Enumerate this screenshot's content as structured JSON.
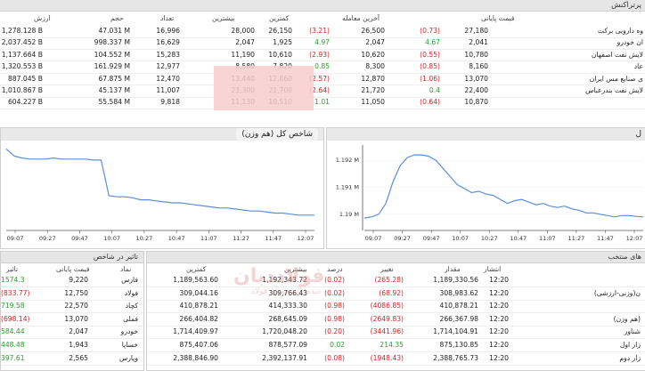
{
  "top_table": {
    "title": "پرتراکنش",
    "headers": {
      "value": "ارزش",
      "volume": "حجم",
      "count": "تعداد",
      "high": "بیشترین",
      "low": "کمترین",
      "last_change": "",
      "last": "آخرین معامله",
      "close_change": "",
      "close": "قیمت پایانی",
      "name": ""
    },
    "rows": [
      {
        "value": "1,278.128 B",
        "volume": "47.031 M",
        "count": "16,996",
        "high": "28,000",
        "low": "26,150",
        "last_change": "(3.21)",
        "last": "26,500",
        "close_change": "(0.73)",
        "close": "27,180",
        "name": "وه دارویی برکت"
      },
      {
        "value": "2,037.452 B",
        "volume": "998.337 M",
        "count": "16,629",
        "high": "2,047",
        "low": "1,925",
        "last_change": "4.97",
        "last": "2,047",
        "close_change": "4.67",
        "close": "2,041",
        "name": "ان خودرو"
      },
      {
        "value": "1,137.664 B",
        "volume": "104.552 M",
        "count": "15,283",
        "high": "11,190",
        "low": "10,610",
        "last_change": "(2.93)",
        "last": "10,620",
        "close_change": "(0.55)",
        "close": "10,780",
        "name": "لایش نفت اصفهان"
      },
      {
        "value": "1,320.553 B",
        "volume": "161.929 M",
        "count": "12,977",
        "high": "8,580",
        "low": "7,820",
        "last_change": "0.85",
        "last": "8,300",
        "close_change": "(0.85)",
        "close": "8,160",
        "name": "عاد"
      },
      {
        "value": "887.045 B",
        "volume": "67.875 M",
        "count": "12,470",
        "high": "13,440",
        "low": "12,860",
        "last_change": "(2.57)",
        "last": "12,870",
        "close_change": "(1.06)",
        "close": "13,070",
        "name": "ی صنایع مس ایران"
      },
      {
        "value": "1,010.867 B",
        "volume": "45.137 M",
        "count": "11,007",
        "high": "23,300",
        "low": "21,700",
        "last_change": "(2.64)",
        "last": "21,720",
        "close_change": "0.4",
        "close": "22,400",
        "name": "لایش نفت بندرعباس"
      },
      {
        "value": "604.227 B",
        "volume": "55.584 M",
        "count": "9,818",
        "high": "11,130",
        "low": "10,510",
        "last_change": "1.01",
        "last": "11,050",
        "close_change": "(0.64)",
        "close": "10,870",
        "name": ""
      }
    ]
  },
  "chart_left": {
    "title": "شاخص کل (هم وزن)",
    "x_labels": [
      "09:07",
      "09:27",
      "09:47",
      "10:07",
      "10:27",
      "10:47",
      "11:07",
      "11:27",
      "11:47",
      "12:07"
    ]
  },
  "chart_right": {
    "title": "ل",
    "x_labels": [
      "09:07",
      "09:27",
      "09:47",
      "10:07",
      "10:27",
      "10:47",
      "11:07",
      "11:27",
      "11:47",
      "12:07"
    ],
    "y_labels": [
      "1.192 M",
      "1.191 M",
      "1.19 M"
    ]
  },
  "chart_data": [
    {
      "type": "line",
      "title": "شاخص کل (هم وزن)",
      "x": [
        "09:07",
        "09:12",
        "09:17",
        "09:22",
        "09:27",
        "09:32",
        "09:37",
        "09:42",
        "09:47",
        "09:52",
        "09:57",
        "10:02",
        "10:05",
        "10:07",
        "10:12",
        "10:17",
        "10:22",
        "10:27",
        "10:32",
        "10:37",
        "10:42",
        "10:47",
        "10:52",
        "10:57",
        "11:02",
        "11:07",
        "11:12",
        "11:17",
        "11:22",
        "11:27",
        "11:32",
        "11:37",
        "11:42",
        "11:47",
        "11:52",
        "11:57",
        "12:02",
        "12:07",
        "12:12",
        "12:17"
      ],
      "series": [
        {
          "values": [
            1.0,
            0.93,
            0.91,
            0.9,
            0.9,
            0.9,
            0.91,
            0.9,
            0.9,
            0.9,
            0.9,
            0.89,
            0.89,
            0.54,
            0.53,
            0.53,
            0.52,
            0.5,
            0.5,
            0.49,
            0.48,
            0.47,
            0.47,
            0.46,
            0.45,
            0.44,
            0.43,
            0.42,
            0.42,
            0.41,
            0.4,
            0.39,
            0.39,
            0.38,
            0.37,
            0.37,
            0.36,
            0.35,
            0.35,
            0.35
          ]
        }
      ]
    },
    {
      "type": "line",
      "y_labels": [
        "1.19 M",
        "1.191 M",
        "1.192 M"
      ],
      "x": [
        "09:02",
        "09:07",
        "09:12",
        "09:17",
        "09:22",
        "09:27",
        "09:32",
        "09:37",
        "09:42",
        "09:47",
        "09:52",
        "09:57",
        "10:02",
        "10:07",
        "10:12",
        "10:17",
        "10:22",
        "10:27",
        "10:32",
        "10:37",
        "10:42",
        "10:47",
        "10:52",
        "10:57",
        "11:02",
        "11:07",
        "11:12",
        "11:17",
        "11:22",
        "11:27",
        "11:32",
        "11:37",
        "11:42",
        "11:47",
        "11:52",
        "11:57",
        "12:02",
        "12:07",
        "12:12",
        "12:17"
      ],
      "series": [
        {
          "values": [
            1189.86,
            1189.9,
            1190.0,
            1190.4,
            1191.2,
            1191.8,
            1192.1,
            1192.2,
            1192.2,
            1192.15,
            1192.0,
            1191.7,
            1191.4,
            1191.1,
            1190.95,
            1190.8,
            1190.85,
            1190.75,
            1190.7,
            1190.55,
            1190.4,
            1190.5,
            1190.55,
            1190.45,
            1190.35,
            1190.4,
            1190.3,
            1190.25,
            1190.3,
            1190.2,
            1190.15,
            1190.05,
            1190.05,
            1190.0,
            1189.95,
            1189.9,
            1189.95,
            1189.95,
            1189.92,
            1189.9
          ]
        }
      ]
    }
  ],
  "bottom_left": {
    "title": "تاثیر در شاخص",
    "headers": {
      "impact": "تاثیر",
      "close": "قیمت پایانی",
      "symbol": "نماد"
    },
    "rows": [
      {
        "impact": "1574.3",
        "close": "9,220",
        "symbol": "فارس",
        "sign": "pos"
      },
      {
        "impact": "(833.77)",
        "close": "12,750",
        "symbol": "فولاد",
        "sign": "neg"
      },
      {
        "impact": "719.58",
        "close": "22,570",
        "symbol": "کچاد",
        "sign": "pos"
      },
      {
        "impact": "(698.14)",
        "close": "13,070",
        "symbol": "فملی",
        "sign": "neg"
      },
      {
        "impact": "584.44",
        "close": "2,047",
        "symbol": "خودرو",
        "sign": "pos"
      },
      {
        "impact": "448.48",
        "close": "1,943",
        "symbol": "خساپا",
        "sign": "pos"
      },
      {
        "impact": "397.61",
        "close": "2,565",
        "symbol": "وپارس",
        "sign": "pos"
      }
    ]
  },
  "bottom_right": {
    "title": "های منتخب",
    "headers": {
      "low": "کمترین",
      "high": "بیشترین",
      "pct": "درصد",
      "change": "تغییر",
      "amount": "مقدار",
      "time": "انتشار",
      "name": ""
    },
    "rows": [
      {
        "low": "1,189,563.60",
        "high": "1,192,343.72",
        "pct": "(0.02)",
        "change": "(265.28)",
        "amount": "1,189,330.56",
        "time": "12:20",
        "name": "",
        "sign": "neg"
      },
      {
        "low": "309,044.16",
        "high": "309,766.43",
        "pct": "(0.02)",
        "change": "(68.92)",
        "amount": "308,983.62",
        "time": "12:20",
        "name": "ن(وزنی-ارزشی)",
        "sign": "neg"
      },
      {
        "low": "410,878.21",
        "high": "414,333.30",
        "pct": "(0.98)",
        "change": "(4086.85)",
        "amount": "410,878.21",
        "time": "12:20",
        "name": "",
        "sign": "neg"
      },
      {
        "low": "266,404.82",
        "high": "268,645.09",
        "pct": "(0.98)",
        "change": "(2649.83)",
        "amount": "266,367.98",
        "time": "12:20",
        "name": "(هم وزن)",
        "sign": "neg"
      },
      {
        "low": "1,714,409.97",
        "high": "1,720,048.20",
        "pct": "(0.20)",
        "change": "(3441.96)",
        "amount": "1,714,104.91",
        "time": "12:20",
        "name": "شناور",
        "sign": "neg"
      },
      {
        "low": "875,407.06",
        "high": "878,577.09",
        "pct": "0.02",
        "change": "214.35",
        "amount": "875,130.85",
        "time": "12:20",
        "name": "زار اول",
        "sign": "pos"
      },
      {
        "low": "2,388,846.90",
        "high": "2,392,137.91",
        "pct": "(0.08)",
        "change": "(1948.43)",
        "amount": "2,388,765.73",
        "time": "12:20",
        "name": "زار دوم",
        "sign": "neg"
      }
    ]
  },
  "watermark": {
    "text1": "فولاددبان",
    "text2": "دیده بان صنعت فولاد"
  },
  "colors": {
    "accent_red": "#e02424",
    "positive": "#2a9d2a",
    "negative": "#c62828",
    "line": "#5b8fd6"
  }
}
